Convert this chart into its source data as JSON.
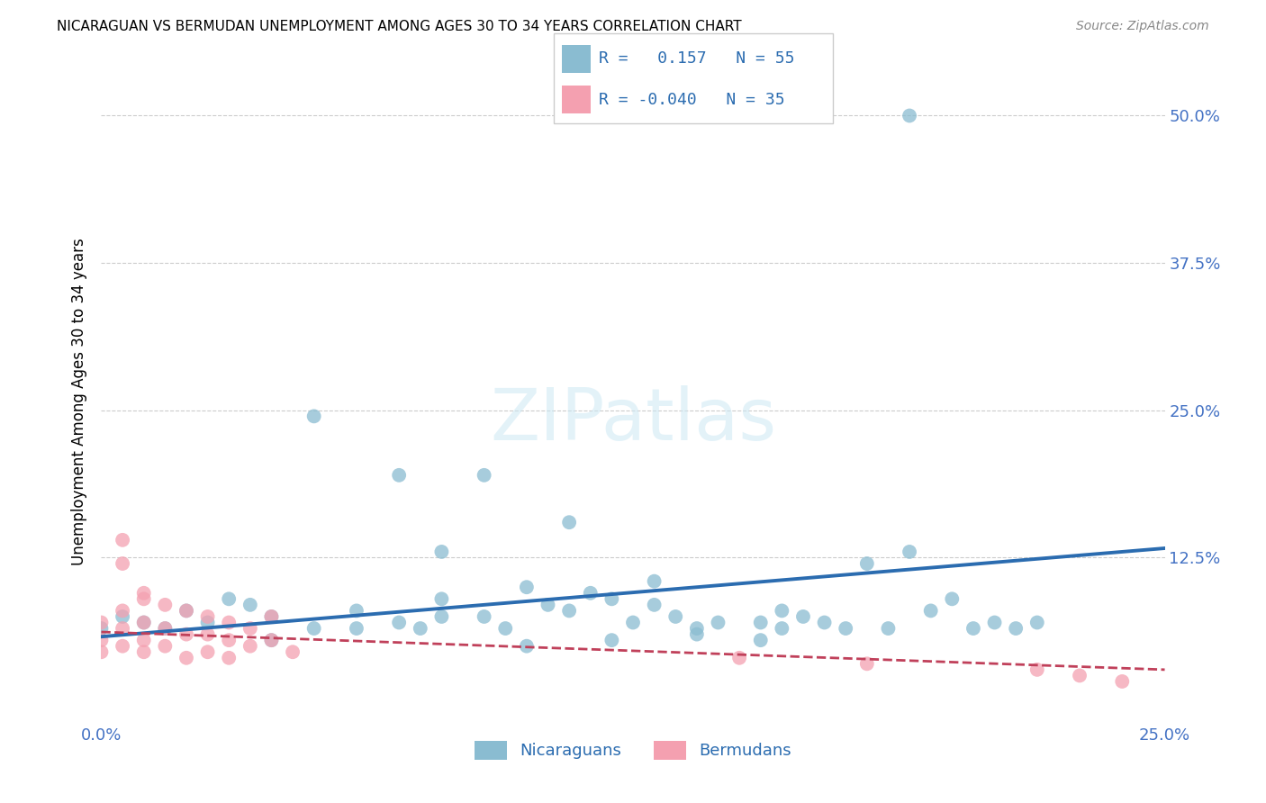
{
  "title": "NICARAGUAN VS BERMUDAN UNEMPLOYMENT AMONG AGES 30 TO 34 YEARS CORRELATION CHART",
  "source": "Source: ZipAtlas.com",
  "ylabel": "Unemployment Among Ages 30 to 34 years",
  "xlim": [
    0.0,
    0.25
  ],
  "ylim": [
    -0.015,
    0.53
  ],
  "blue_color": "#8abcd1",
  "pink_color": "#f4a0b0",
  "blue_line_color": "#2b6cb0",
  "pink_line_color": "#c0405a",
  "grid_color": "#cccccc",
  "blue_trend_x": [
    0.0,
    0.25
  ],
  "blue_trend_y": [
    0.058,
    0.133
  ],
  "pink_trend_x": [
    0.0,
    0.25
  ],
  "pink_trend_y": [
    0.062,
    0.03
  ],
  "nic_x": [
    0.19,
    0.08,
    0.0,
    0.01,
    0.005,
    0.02,
    0.015,
    0.025,
    0.03,
    0.035,
    0.04,
    0.05,
    0.06,
    0.07,
    0.075,
    0.08,
    0.09,
    0.095,
    0.1,
    0.105,
    0.11,
    0.115,
    0.12,
    0.125,
    0.13,
    0.135,
    0.14,
    0.145,
    0.155,
    0.16,
    0.165,
    0.17,
    0.175,
    0.18,
    0.185,
    0.19,
    0.195,
    0.2,
    0.205,
    0.21,
    0.215,
    0.22,
    0.05,
    0.07,
    0.09,
    0.11,
    0.13,
    0.08,
    0.06,
    0.04,
    0.155,
    0.16,
    0.1,
    0.12,
    0.14
  ],
  "nic_y": [
    0.5,
    0.13,
    0.065,
    0.07,
    0.075,
    0.08,
    0.065,
    0.07,
    0.09,
    0.085,
    0.075,
    0.065,
    0.08,
    0.07,
    0.065,
    0.09,
    0.075,
    0.065,
    0.1,
    0.085,
    0.08,
    0.095,
    0.09,
    0.07,
    0.085,
    0.075,
    0.065,
    0.07,
    0.07,
    0.08,
    0.075,
    0.07,
    0.065,
    0.12,
    0.065,
    0.13,
    0.08,
    0.09,
    0.065,
    0.07,
    0.065,
    0.07,
    0.245,
    0.195,
    0.195,
    0.155,
    0.105,
    0.075,
    0.065,
    0.055,
    0.055,
    0.065,
    0.05,
    0.055,
    0.06
  ],
  "berm_x": [
    0.0,
    0.0,
    0.0,
    0.005,
    0.005,
    0.005,
    0.005,
    0.01,
    0.01,
    0.01,
    0.01,
    0.015,
    0.015,
    0.015,
    0.02,
    0.02,
    0.02,
    0.025,
    0.025,
    0.025,
    0.03,
    0.03,
    0.03,
    0.035,
    0.035,
    0.04,
    0.04,
    0.045,
    0.005,
    0.01,
    0.15,
    0.18,
    0.22,
    0.23,
    0.24
  ],
  "berm_y": [
    0.07,
    0.055,
    0.045,
    0.14,
    0.08,
    0.065,
    0.05,
    0.09,
    0.07,
    0.055,
    0.045,
    0.085,
    0.065,
    0.05,
    0.08,
    0.06,
    0.04,
    0.075,
    0.06,
    0.045,
    0.07,
    0.055,
    0.04,
    0.065,
    0.05,
    0.075,
    0.055,
    0.045,
    0.12,
    0.095,
    0.04,
    0.035,
    0.03,
    0.025,
    0.02
  ]
}
